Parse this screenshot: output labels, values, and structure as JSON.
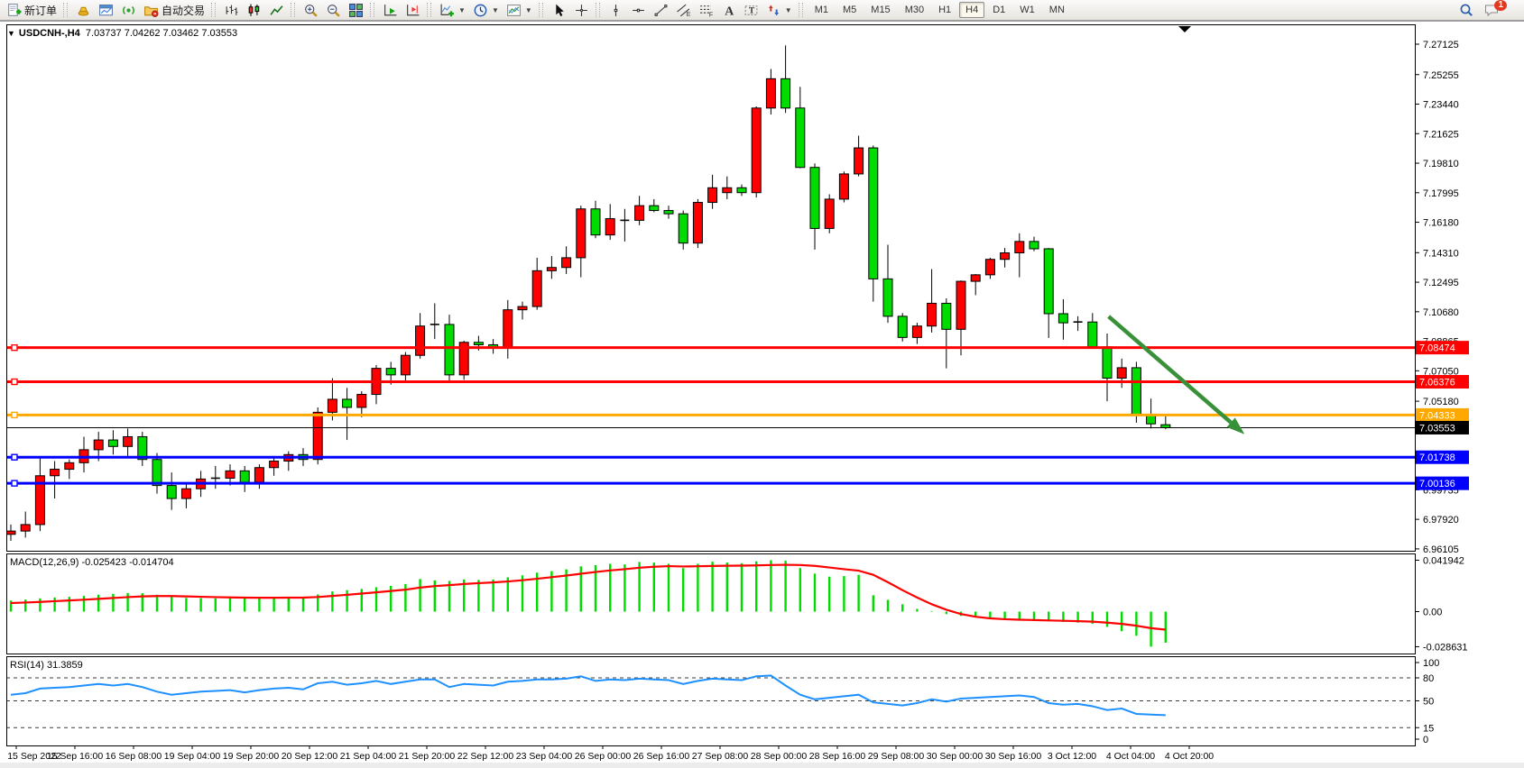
{
  "toolbar": {
    "groups": [
      [
        {
          "name": "new-order",
          "icon": "new-order-icon",
          "label": "新订单"
        }
      ],
      [
        {
          "name": "market",
          "icon": "market-icon"
        },
        {
          "name": "charts-window",
          "icon": "window-icon"
        },
        {
          "name": "signals",
          "icon": "signals-icon"
        },
        {
          "name": "autotrading",
          "icon": "autotrading-icon",
          "label": "自动交易"
        }
      ],
      [
        {
          "name": "bar-chart-mode",
          "icon": "bars-icon"
        },
        {
          "name": "candlestick-mode",
          "icon": "candles-icon"
        },
        {
          "name": "line-chart-mode",
          "icon": "line-icon"
        }
      ],
      [
        {
          "name": "zoom-in",
          "icon": "zoom-in-icon"
        },
        {
          "name": "zoom-out",
          "icon": "zoom-out-icon"
        },
        {
          "name": "tile-windows",
          "icon": "tile-icon"
        }
      ],
      [
        {
          "name": "auto-scroll",
          "icon": "autoscroll-icon"
        },
        {
          "name": "chart-shift",
          "icon": "chartshift-icon"
        }
      ],
      [
        {
          "name": "indicators",
          "icon": "indicators-icon",
          "dropdown": true
        },
        {
          "name": "periods",
          "icon": "clock-icon",
          "dropdown": true
        },
        {
          "name": "templates",
          "icon": "template-icon",
          "dropdown": true
        }
      ],
      [
        {
          "name": "cursor",
          "icon": "cursor-icon"
        },
        {
          "name": "crosshair",
          "icon": "crosshair-icon"
        }
      ],
      [
        {
          "name": "vertical-line",
          "icon": "vline-icon"
        },
        {
          "name": "horizontal-line",
          "icon": "hline-icon"
        },
        {
          "name": "trendline",
          "icon": "trendline-icon"
        },
        {
          "name": "equidistant-channel",
          "icon": "channel-icon"
        },
        {
          "name": "fibonacci",
          "icon": "fibo-icon"
        },
        {
          "name": "text",
          "icon": "text-icon"
        },
        {
          "name": "text-label",
          "icon": "label-icon"
        },
        {
          "name": "arrows",
          "icon": "shapes-icon",
          "dropdown": true
        }
      ]
    ],
    "timeframes": [
      {
        "label": "M1"
      },
      {
        "label": "M5"
      },
      {
        "label": "M15"
      },
      {
        "label": "M30"
      },
      {
        "label": "H1"
      },
      {
        "label": "H4",
        "active": true
      },
      {
        "label": "D1"
      },
      {
        "label": "W1"
      },
      {
        "label": "MN"
      }
    ],
    "right": [
      {
        "name": "search",
        "icon": "search-icon"
      },
      {
        "name": "notifications",
        "icon": "chat-icon",
        "badge": "1"
      }
    ]
  },
  "chart": {
    "collapse_glyph": "▼",
    "title_symbol": "USDCNH-,H4",
    "title_ohlc": "7.03737 7.04262 7.03462 7.03553"
  },
  "chart_data": {
    "type": "candlestick",
    "symbol": "USDCNH-",
    "timeframe": "H4",
    "color_convention": "red=up, green=down",
    "last_ohlc": {
      "open": "7.03737",
      "high": "7.04262",
      "low": "7.03462",
      "close": "7.03553"
    },
    "price_axis_ticks": [
      "7.27125",
      "7.25255",
      "7.23440",
      "7.21625",
      "7.19810",
      "7.17995",
      "7.16180",
      "7.14310",
      "7.12495",
      "7.10680",
      "7.08865",
      "7.07050",
      "7.05180",
      "7.03365",
      "7.01550",
      "6.99735",
      "6.97920",
      "6.96105"
    ],
    "time_axis_labels": [
      "15 Sep 2022",
      "15 Sep 16:00",
      "16 Sep 08:00",
      "19 Sep 04:00",
      "19 Sep 20:00",
      "20 Sep 12:00",
      "21 Sep 04:00",
      "21 Sep 20:00",
      "22 Sep 12:00",
      "23 Sep 04:00",
      "26 Sep 00:00",
      "26 Sep 16:00",
      "27 Sep 08:00",
      "28 Sep 00:00",
      "28 Sep 16:00",
      "29 Sep 08:00",
      "30 Sep 00:00",
      "30 Sep 16:00",
      "3 Oct 12:00",
      "4 Oct 04:00",
      "4 Oct 20:00"
    ],
    "candles": [
      [
        6.97,
        6.976,
        6.966,
        6.972
      ],
      [
        6.972,
        6.984,
        6.968,
        6.976
      ],
      [
        6.976,
        7.0175,
        6.972,
        7.006
      ],
      [
        7.006,
        7.015,
        6.992,
        7.01
      ],
      [
        7.01,
        7.016,
        7.004,
        7.014
      ],
      [
        7.014,
        7.03,
        7.008,
        7.022
      ],
      [
        7.022,
        7.033,
        7.015,
        7.028
      ],
      [
        7.028,
        7.034,
        7.019,
        7.024
      ],
      [
        7.024,
        7.035,
        7.018,
        7.03
      ],
      [
        7.03,
        7.033,
        7.012,
        7.016
      ],
      [
        7.016,
        7.02,
        6.995,
        7.0
      ],
      [
        7.0,
        7.008,
        6.985,
        6.992
      ],
      [
        6.992,
        7.001,
        6.986,
        6.998
      ],
      [
        6.998,
        7.009,
        6.993,
        7.004
      ],
      [
        7.004,
        7.012,
        6.998,
        7.0045
      ],
      [
        7.0045,
        7.013,
        7.0,
        7.009
      ],
      [
        7.009,
        7.012,
        6.996,
        7.002
      ],
      [
        7.002,
        7.013,
        6.998,
        7.011
      ],
      [
        7.011,
        7.018,
        7.006,
        7.015
      ],
      [
        7.015,
        7.021,
        7.009,
        7.019
      ],
      [
        7.019,
        7.023,
        7.012,
        7.016
      ],
      [
        7.016,
        7.048,
        7.013,
        7.045
      ],
      [
        7.045,
        7.066,
        7.04,
        7.053
      ],
      [
        7.053,
        7.06,
        7.028,
        7.048
      ],
      [
        7.048,
        7.058,
        7.042,
        7.056
      ],
      [
        7.056,
        7.074,
        7.05,
        7.072
      ],
      [
        7.072,
        7.076,
        7.062,
        7.068
      ],
      [
        7.068,
        7.082,
        7.063,
        7.08
      ],
      [
        7.08,
        7.106,
        7.078,
        7.098
      ],
      [
        7.098,
        7.112,
        7.09,
        7.099
      ],
      [
        7.099,
        7.105,
        7.063,
        7.068
      ],
      [
        7.068,
        7.089,
        7.065,
        7.088
      ],
      [
        7.088,
        7.092,
        7.083,
        7.0865
      ],
      [
        7.0865,
        7.09,
        7.081,
        7.085
      ],
      [
        7.085,
        7.114,
        7.078,
        7.108
      ],
      [
        7.108,
        7.113,
        7.102,
        7.11
      ],
      [
        7.11,
        7.14,
        7.108,
        7.132
      ],
      [
        7.132,
        7.141,
        7.127,
        7.134
      ],
      [
        7.134,
        7.147,
        7.13,
        7.14
      ],
      [
        7.14,
        7.172,
        7.128,
        7.17
      ],
      [
        7.17,
        7.175,
        7.152,
        7.154
      ],
      [
        7.154,
        7.173,
        7.151,
        7.164
      ],
      [
        7.164,
        7.17,
        7.15,
        7.163
      ],
      [
        7.163,
        7.178,
        7.16,
        7.172
      ],
      [
        7.172,
        7.176,
        7.168,
        7.169
      ],
      [
        7.169,
        7.172,
        7.164,
        7.167
      ],
      [
        7.167,
        7.169,
        7.145,
        7.149
      ],
      [
        7.149,
        7.176,
        7.146,
        7.174
      ],
      [
        7.174,
        7.191,
        7.17,
        7.183
      ],
      [
        7.18,
        7.19,
        7.176,
        7.183
      ],
      [
        7.183,
        7.185,
        7.178,
        7.18
      ],
      [
        7.18,
        7.233,
        7.177,
        7.232
      ],
      [
        7.232,
        7.256,
        7.228,
        7.25
      ],
      [
        7.25,
        7.2705,
        7.229,
        7.232
      ],
      [
        7.232,
        7.245,
        7.195,
        7.1955
      ],
      [
        7.1955,
        7.198,
        7.145,
        7.158
      ],
      [
        7.158,
        7.179,
        7.155,
        7.176
      ],
      [
        7.176,
        7.193,
        7.174,
        7.1915
      ],
      [
        7.1915,
        7.215,
        7.19,
        7.2075
      ],
      [
        7.2075,
        7.209,
        7.113,
        7.127
      ],
      [
        7.127,
        7.148,
        7.1,
        7.104
      ],
      [
        7.104,
        7.106,
        7.0885,
        7.091
      ],
      [
        7.091,
        7.1,
        7.087,
        7.098
      ],
      [
        7.098,
        7.133,
        7.094,
        7.112
      ],
      [
        7.112,
        7.115,
        7.072,
        7.096
      ],
      [
        7.096,
        7.126,
        7.08,
        7.1255
      ],
      [
        7.1255,
        7.13,
        7.117,
        7.1295
      ],
      [
        7.1295,
        7.14,
        7.127,
        7.139
      ],
      [
        7.139,
        7.146,
        7.134,
        7.143
      ],
      [
        7.143,
        7.155,
        7.128,
        7.15
      ],
      [
        7.15,
        7.153,
        7.144,
        7.1455
      ],
      [
        7.1455,
        7.146,
        7.0907,
        7.1056
      ],
      [
        7.1056,
        7.1145,
        7.0896,
        7.1
      ],
      [
        7.1,
        7.104,
        7.095,
        7.1005
      ],
      [
        7.1005,
        7.106,
        7.085,
        7.0852
      ],
      [
        7.0852,
        7.0934,
        7.0518,
        7.066
      ],
      [
        7.066,
        7.078,
        7.06,
        7.0724
      ],
      [
        7.0724,
        7.076,
        7.0386,
        7.0436
      ],
      [
        7.0436,
        7.0534,
        7.0351,
        7.0379
      ],
      [
        7.03737,
        7.04262,
        7.03462,
        7.03553
      ]
    ],
    "hlines": [
      {
        "price": 7.08474,
        "label": "7.08474",
        "color": "#FF0000",
        "width": 3
      },
      {
        "price": 7.06376,
        "label": "7.06376",
        "color": "#FF0000",
        "width": 3
      },
      {
        "price": 7.04333,
        "label": "7.04333",
        "color": "#FFA800",
        "width": 3
      },
      {
        "price": 7.01738,
        "label": "7.01738",
        "color": "#0000FF",
        "width": 3
      },
      {
        "price": 7.00136,
        "label": "7.00136",
        "color": "#0000FF",
        "width": 3
      }
    ],
    "bid_line": {
      "price": 7.03553,
      "label": "7.03553",
      "color": "#000000"
    },
    "trend_arrow": {
      "from_bar": 75.1,
      "from_price": 7.1039,
      "to_bar": 84.4,
      "to_price": 7.0315,
      "color": "#389038"
    },
    "indicators": {
      "macd": {
        "label": "MACD(12,26,9)",
        "values_text": "-0.025423 -0.014704",
        "axis_ticks": [
          "0.041942",
          "0.00",
          "-0.028631"
        ],
        "hist_color": "#00DC00",
        "signal_color": "#FF0000",
        "histogram": [
          0.009,
          0.0098,
          0.0108,
          0.0115,
          0.012,
          0.0128,
          0.0138,
          0.0145,
          0.0152,
          0.015,
          0.0138,
          0.0122,
          0.0112,
          0.011,
          0.0108,
          0.011,
          0.0108,
          0.0112,
          0.0115,
          0.0118,
          0.0115,
          0.014,
          0.0165,
          0.0175,
          0.0185,
          0.0199,
          0.021,
          0.0225,
          0.0266,
          0.0255,
          0.025,
          0.0262,
          0.0258,
          0.0262,
          0.028,
          0.0296,
          0.0318,
          0.033,
          0.0345,
          0.0369,
          0.0379,
          0.039,
          0.0385,
          0.0405,
          0.04,
          0.039,
          0.0355,
          0.039,
          0.0407,
          0.04,
          0.0395,
          0.041,
          0.0419,
          0.0415,
          0.0355,
          0.031,
          0.0285,
          0.029,
          0.03,
          0.0133,
          0.0096,
          0.006,
          0.0022,
          0.0005,
          -0.002,
          -0.0035,
          -0.0048,
          -0.0058,
          -0.0065,
          -0.007,
          -0.0075,
          -0.008,
          -0.0085,
          -0.009,
          -0.01,
          -0.0125,
          -0.016,
          -0.0197,
          -0.0286,
          -0.0254
        ],
        "signal": [
          0.007,
          0.0074,
          0.0079,
          0.0085,
          0.0091,
          0.0097,
          0.0104,
          0.0111,
          0.0118,
          0.0124,
          0.0127,
          0.0127,
          0.0124,
          0.0121,
          0.0118,
          0.0116,
          0.0114,
          0.0113,
          0.0113,
          0.0114,
          0.0114,
          0.0119,
          0.0128,
          0.0137,
          0.0147,
          0.0157,
          0.0168,
          0.0179,
          0.0196,
          0.0208,
          0.0216,
          0.0225,
          0.0232,
          0.0238,
          0.0246,
          0.0256,
          0.0268,
          0.0281,
          0.0294,
          0.0309,
          0.0323,
          0.0336,
          0.0346,
          0.0358,
          0.0366,
          0.0371,
          0.0368,
          0.037,
          0.0372,
          0.0374,
          0.0375,
          0.0377,
          0.038,
          0.0382,
          0.038,
          0.0373,
          0.036,
          0.0346,
          0.0334,
          0.03,
          0.024,
          0.0175,
          0.0115,
          0.006,
          0.0015,
          -0.002,
          -0.0042,
          -0.0055,
          -0.0062,
          -0.0066,
          -0.0069,
          -0.0072,
          -0.0075,
          -0.0078,
          -0.0082,
          -0.009,
          -0.01,
          -0.0115,
          -0.0135,
          -0.0147
        ]
      },
      "rsi": {
        "label": "RSI(14)",
        "value_text": "31.3859",
        "axis_ticks": [
          "100",
          "80",
          "50",
          "15",
          "0"
        ],
        "levels": [
          80,
          50,
          15
        ],
        "line_color": "#1E90FF",
        "values": [
          58,
          60,
          66,
          67,
          68,
          70,
          72,
          70,
          72,
          68,
          62,
          58,
          60,
          62,
          63,
          64,
          61,
          64,
          66,
          67,
          65,
          73,
          75,
          71,
          73,
          76,
          72,
          75,
          78,
          78,
          68,
          72,
          71,
          70,
          75,
          76,
          78,
          78,
          79,
          82,
          76,
          78,
          77,
          79,
          78,
          77,
          72,
          76,
          79,
          78,
          77,
          82,
          83,
          70,
          58,
          52,
          54,
          56,
          58,
          48,
          46,
          44,
          47,
          52,
          49,
          53,
          54,
          55,
          56,
          57,
          55,
          47,
          45,
          46,
          43,
          38,
          40,
          33,
          32,
          31.39
        ]
      }
    },
    "colors": {
      "up": "#FF0000",
      "down": "#00DC00",
      "outline": "#000000",
      "background": "#FFFFFF"
    }
  }
}
